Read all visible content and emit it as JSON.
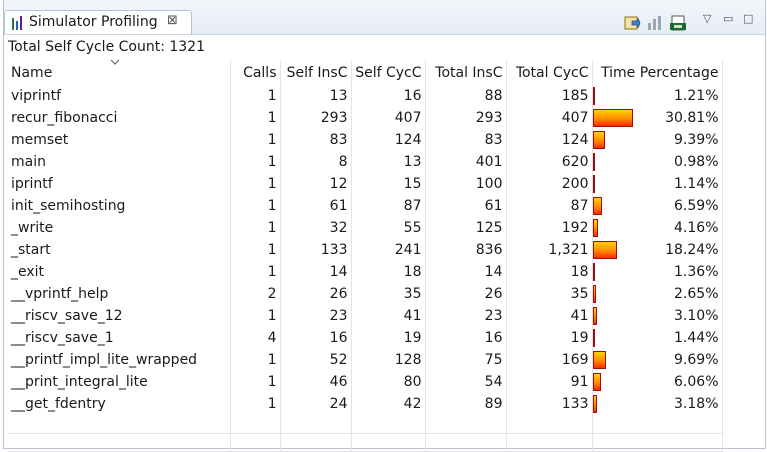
{
  "tab": {
    "title": "Simulator Profiling",
    "close_glyph": "⊠"
  },
  "toolbar": {
    "icons": [
      "export-icon",
      "chart-icon",
      "csv-icon"
    ]
  },
  "summary": {
    "text": "Total Self Cycle Count: 1321"
  },
  "columns": {
    "name": "Name",
    "calls": "Calls",
    "self_insc": "Self InsC",
    "self_cycc": "Self CycC",
    "total_insc": "Total InsC",
    "total_cycc": "Total CycC",
    "time_pct": "Time Percentage"
  },
  "rows": [
    {
      "name": "viprintf",
      "calls": "1",
      "self_insc": "13",
      "self_cycc": "16",
      "total_insc": "88",
      "total_cycc": "185",
      "time_pct": "1.21%",
      "pct": 1.21
    },
    {
      "name": "recur_fibonacci",
      "calls": "1",
      "self_insc": "293",
      "self_cycc": "407",
      "total_insc": "293",
      "total_cycc": "407",
      "time_pct": "30.81%",
      "pct": 30.81
    },
    {
      "name": "memset",
      "calls": "1",
      "self_insc": "83",
      "self_cycc": "124",
      "total_insc": "83",
      "total_cycc": "124",
      "time_pct": "9.39%",
      "pct": 9.39
    },
    {
      "name": "main",
      "calls": "1",
      "self_insc": "8",
      "self_cycc": "13",
      "total_insc": "401",
      "total_cycc": "620",
      "time_pct": "0.98%",
      "pct": 0.98
    },
    {
      "name": "iprintf",
      "calls": "1",
      "self_insc": "12",
      "self_cycc": "15",
      "total_insc": "100",
      "total_cycc": "200",
      "time_pct": "1.14%",
      "pct": 1.14
    },
    {
      "name": "init_semihosting",
      "calls": "1",
      "self_insc": "61",
      "self_cycc": "87",
      "total_insc": "61",
      "total_cycc": "87",
      "time_pct": "6.59%",
      "pct": 6.59
    },
    {
      "name": "_write",
      "calls": "1",
      "self_insc": "32",
      "self_cycc": "55",
      "total_insc": "125",
      "total_cycc": "192",
      "time_pct": "4.16%",
      "pct": 4.16
    },
    {
      "name": "_start",
      "calls": "1",
      "self_insc": "133",
      "self_cycc": "241",
      "total_insc": "836",
      "total_cycc": "1,321",
      "time_pct": "18.24%",
      "pct": 18.24
    },
    {
      "name": "_exit",
      "calls": "1",
      "self_insc": "14",
      "self_cycc": "18",
      "total_insc": "14",
      "total_cycc": "18",
      "time_pct": "1.36%",
      "pct": 1.36
    },
    {
      "name": "__vprintf_help",
      "calls": "2",
      "self_insc": "26",
      "self_cycc": "35",
      "total_insc": "26",
      "total_cycc": "35",
      "time_pct": "2.65%",
      "pct": 2.65
    },
    {
      "name": "__riscv_save_12",
      "calls": "1",
      "self_insc": "23",
      "self_cycc": "41",
      "total_insc": "23",
      "total_cycc": "41",
      "time_pct": "3.10%",
      "pct": 3.1
    },
    {
      "name": "__riscv_save_1",
      "calls": "4",
      "self_insc": "16",
      "self_cycc": "19",
      "total_insc": "16",
      "total_cycc": "19",
      "time_pct": "1.44%",
      "pct": 1.44
    },
    {
      "name": "__printf_impl_lite_wrapped",
      "calls": "1",
      "self_insc": "52",
      "self_cycc": "128",
      "total_insc": "75",
      "total_cycc": "169",
      "time_pct": "9.69%",
      "pct": 9.69
    },
    {
      "name": "__print_integral_lite",
      "calls": "1",
      "self_insc": "46",
      "self_cycc": "80",
      "total_insc": "54",
      "total_cycc": "91",
      "time_pct": "6.06%",
      "pct": 6.06
    },
    {
      "name": "__get_fdentry",
      "calls": "1",
      "self_insc": "24",
      "self_cycc": "42",
      "total_insc": "89",
      "total_cycc": "133",
      "time_pct": "3.18%",
      "pct": 3.18
    }
  ],
  "colors": {
    "bar_top": "#ffd400",
    "bar_bottom": "#ff2a00",
    "bar_border": "#9a1010",
    "tab_border": "#b8c4d6"
  }
}
